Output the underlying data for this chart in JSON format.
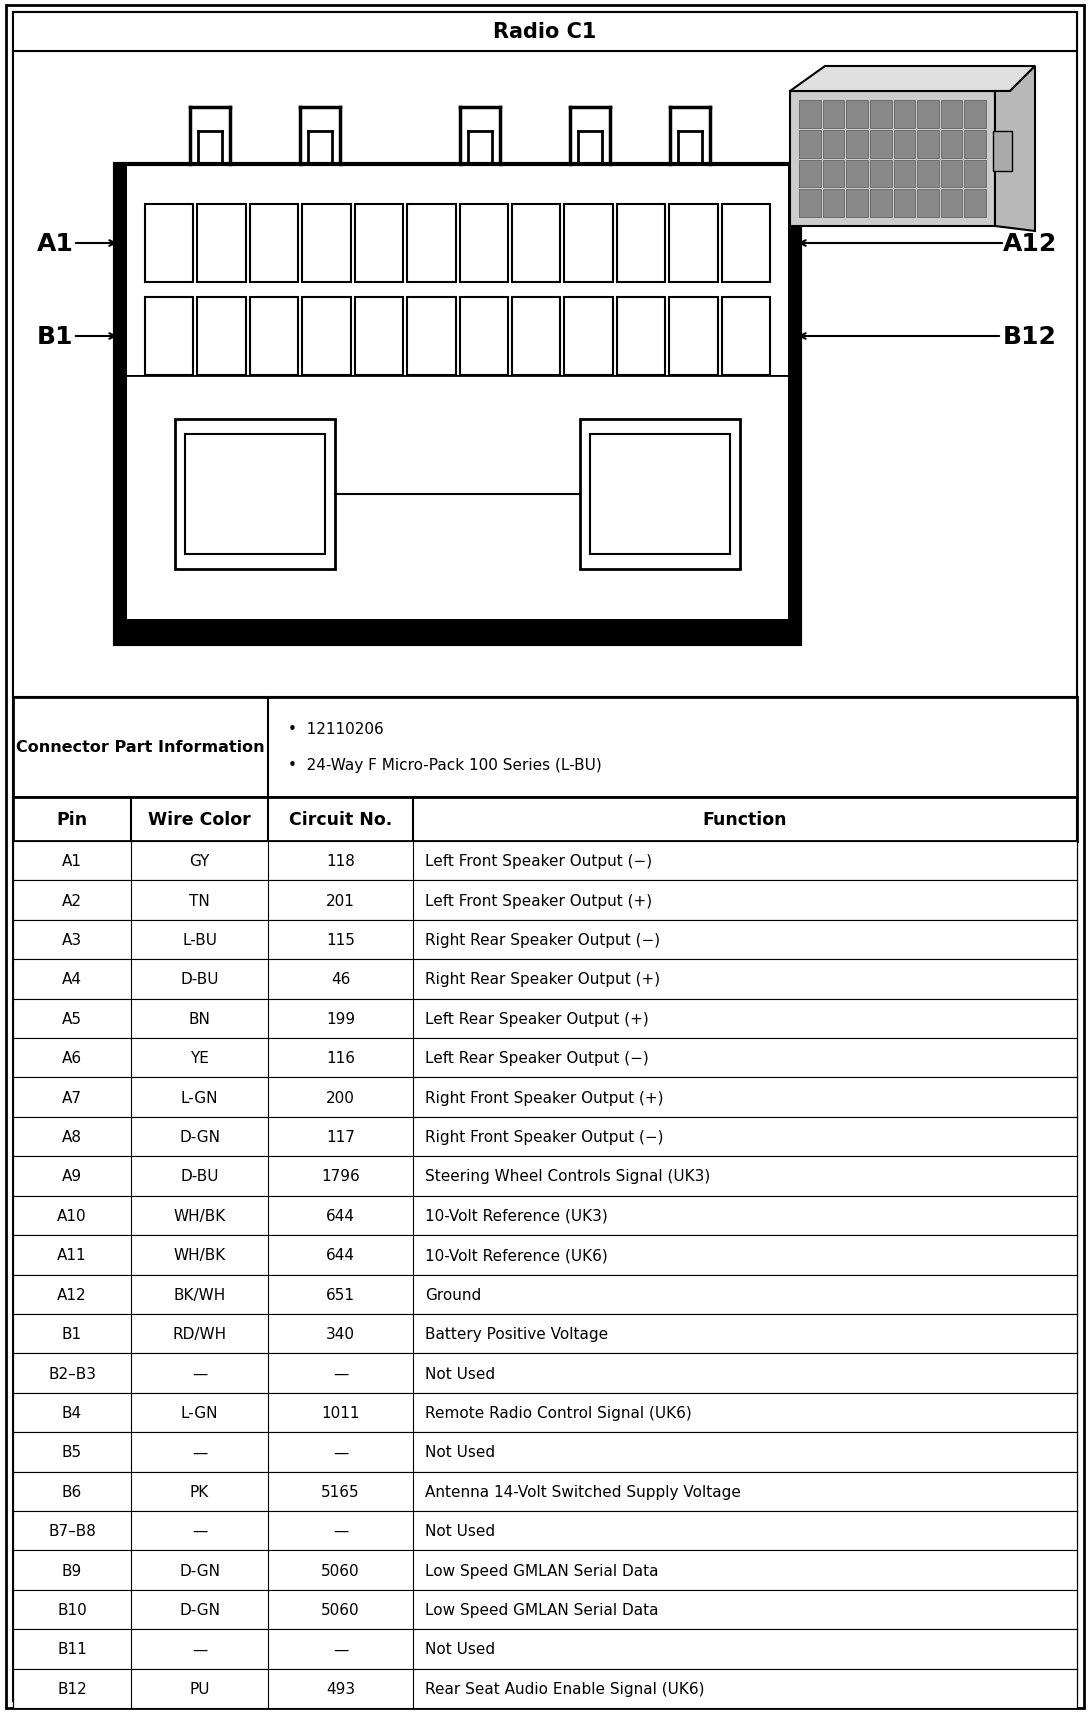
{
  "title": "Radio C1",
  "connector_info_label": "Connector Part Information",
  "connector_info_bullets": [
    "12110206",
    "24-Way F Micro-Pack 100 Series (L-BU)"
  ],
  "table_headers": [
    "Pin",
    "Wire Color",
    "Circuit No.",
    "Function"
  ],
  "table_rows": [
    [
      "A1",
      "GY",
      "118",
      "Left Front Speaker Output (−)"
    ],
    [
      "A2",
      "TN",
      "201",
      "Left Front Speaker Output (+)"
    ],
    [
      "A3",
      "L-BU",
      "115",
      "Right Rear Speaker Output (−)"
    ],
    [
      "A4",
      "D-BU",
      "46",
      "Right Rear Speaker Output (+)"
    ],
    [
      "A5",
      "BN",
      "199",
      "Left Rear Speaker Output (+)"
    ],
    [
      "A6",
      "YE",
      "116",
      "Left Rear Speaker Output (−)"
    ],
    [
      "A7",
      "L-GN",
      "200",
      "Right Front Speaker Output (+)"
    ],
    [
      "A8",
      "D-GN",
      "117",
      "Right Front Speaker Output (−)"
    ],
    [
      "A9",
      "D-BU",
      "1796",
      "Steering Wheel Controls Signal (UK3)"
    ],
    [
      "A10",
      "WH/BK",
      "644",
      "10-Volt Reference (UK3)"
    ],
    [
      "A11",
      "WH/BK",
      "644",
      "10-Volt Reference (UK6)"
    ],
    [
      "A12",
      "BK/WH",
      "651",
      "Ground"
    ],
    [
      "B1",
      "RD/WH",
      "340",
      "Battery Positive Voltage"
    ],
    [
      "B2–B3",
      "—",
      "—",
      "Not Used"
    ],
    [
      "B4",
      "L-GN",
      "1011",
      "Remote Radio Control Signal (UK6)"
    ],
    [
      "B5",
      "—",
      "—",
      "Not Used"
    ],
    [
      "B6",
      "PK",
      "5165",
      "Antenna 14-Volt Switched Supply Voltage"
    ],
    [
      "B7–B8",
      "—",
      "—",
      "Not Used"
    ],
    [
      "B9",
      "D-GN",
      "5060",
      "Low Speed GMLAN Serial Data"
    ],
    [
      "B10",
      "D-GN",
      "5060",
      "Low Speed GMLAN Serial Data"
    ],
    [
      "B11",
      "—",
      "—",
      "Not Used"
    ],
    [
      "B12",
      "PU",
      "493",
      "Rear Seat Audio Enable Signal (UK6)"
    ]
  ],
  "bg_color": "#ffffff",
  "label_A1": "A1",
  "label_A12": "A12",
  "label_B1": "B1",
  "label_B12": "B12",
  "fig_w": 10.9,
  "fig_h": 17.15,
  "dpi": 100
}
